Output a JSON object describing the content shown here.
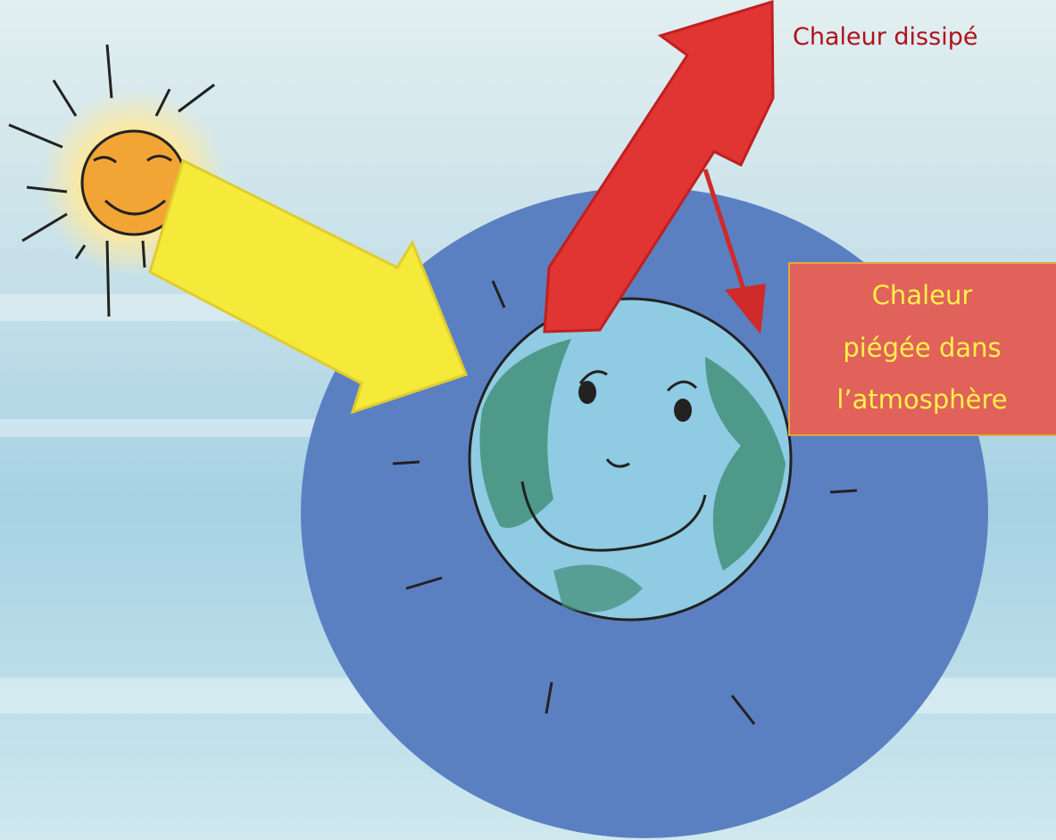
{
  "labels": {
    "heat_escaped": "Chaleur dissipé",
    "heat_trapped": [
      "Chaleur",
      "piégée dans",
      "l’atmosphère"
    ]
  }
}
